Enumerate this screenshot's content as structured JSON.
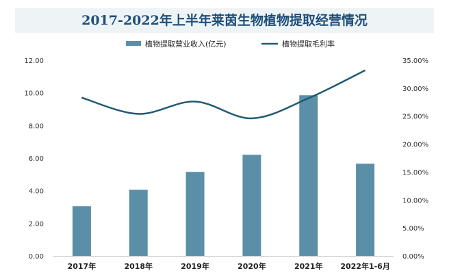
{
  "chart_data": {
    "type": "bar",
    "title": "2017-2022年上半年莱茵生物植物提取经营情况",
    "categories": [
      "2017年",
      "2018年",
      "2019年",
      "2020年",
      "2021年",
      "2022年1-6月"
    ],
    "series": [
      {
        "name": "植物提取营业收入(亿元)",
        "type": "bar",
        "axis": "left",
        "color": "#5b8fa8",
        "values": [
          3.05,
          4.05,
          5.15,
          6.2,
          9.85,
          5.65
        ]
      },
      {
        "name": "植物提取毛利率",
        "type": "line",
        "axis": "right",
        "color": "#1e5a73",
        "values": [
          28.3,
          25.4,
          27.6,
          24.6,
          28.2,
          33.2
        ]
      }
    ],
    "y_left": {
      "min": 0,
      "max": 12,
      "step": 2,
      "tick_labels": [
        "0.00",
        "2.00",
        "4.00",
        "6.00",
        "8.00",
        "10.00",
        "12.00"
      ]
    },
    "y_right": {
      "min": 0,
      "max": 35,
      "step": 5,
      "tick_labels": [
        "0.00%",
        "5.00%",
        "10.00%",
        "15.00%",
        "20.00%",
        "25.00%",
        "30.00%",
        "35.00%"
      ]
    },
    "legend_position": "top",
    "grid": false
  }
}
